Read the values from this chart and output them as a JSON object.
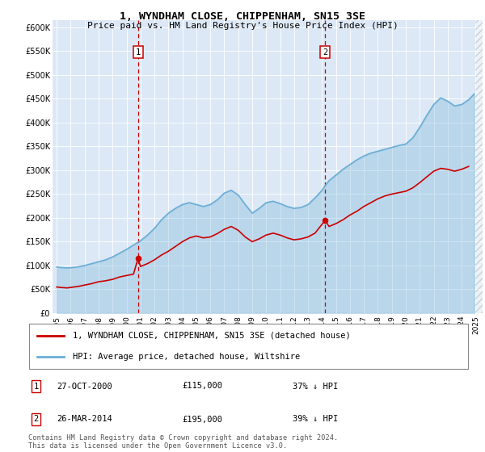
{
  "title": "1, WYNDHAM CLOSE, CHIPPENHAM, SN15 3SE",
  "subtitle": "Price paid vs. HM Land Registry's House Price Index (HPI)",
  "ylim": [
    0,
    620000
  ],
  "xlim_start": 1994.7,
  "xlim_end": 2025.5,
  "plot_bg_color": "#dce8f5",
  "hpi_color": "#6baed6",
  "price_color": "#cc0000",
  "vline_color": "#cc0000",
  "transaction1_x": 2000.82,
  "transaction1_y": 115000,
  "transaction2_x": 2014.23,
  "transaction2_y": 195000,
  "transaction1_date": "27-OCT-2000",
  "transaction1_price": "£115,000",
  "transaction1_hpi": "37% ↓ HPI",
  "transaction2_date": "26-MAR-2014",
  "transaction2_price": "£195,000",
  "transaction2_hpi": "39% ↓ HPI",
  "legend_label_price": "1, WYNDHAM CLOSE, CHIPPENHAM, SN15 3SE (detached house)",
  "legend_label_hpi": "HPI: Average price, detached house, Wiltshire",
  "footnote": "Contains HM Land Registry data © Crown copyright and database right 2024.\nThis data is licensed under the Open Government Licence v3.0.",
  "hpi_data": [
    [
      1995.0,
      97000
    ],
    [
      1995.25,
      96000
    ],
    [
      1995.5,
      95500
    ],
    [
      1995.75,
      95000
    ],
    [
      1996.0,
      95500
    ],
    [
      1996.5,
      97000
    ],
    [
      1997.0,
      100000
    ],
    [
      1997.5,
      104000
    ],
    [
      1998.0,
      108000
    ],
    [
      1998.5,
      112000
    ],
    [
      1999.0,
      118000
    ],
    [
      1999.5,
      126000
    ],
    [
      2000.0,
      134000
    ],
    [
      2000.5,
      143000
    ],
    [
      2001.0,
      152000
    ],
    [
      2001.5,
      164000
    ],
    [
      2002.0,
      178000
    ],
    [
      2002.5,
      196000
    ],
    [
      2003.0,
      210000
    ],
    [
      2003.5,
      220000
    ],
    [
      2004.0,
      228000
    ],
    [
      2004.5,
      232000
    ],
    [
      2005.0,
      228000
    ],
    [
      2005.5,
      224000
    ],
    [
      2006.0,
      228000
    ],
    [
      2006.5,
      238000
    ],
    [
      2007.0,
      252000
    ],
    [
      2007.5,
      258000
    ],
    [
      2008.0,
      248000
    ],
    [
      2008.5,
      228000
    ],
    [
      2009.0,
      210000
    ],
    [
      2009.5,
      220000
    ],
    [
      2010.0,
      232000
    ],
    [
      2010.5,
      235000
    ],
    [
      2011.0,
      230000
    ],
    [
      2011.5,
      224000
    ],
    [
      2012.0,
      220000
    ],
    [
      2012.5,
      222000
    ],
    [
      2013.0,
      228000
    ],
    [
      2013.5,
      242000
    ],
    [
      2014.0,
      258000
    ],
    [
      2014.23,
      268000
    ],
    [
      2014.5,
      278000
    ],
    [
      2015.0,
      290000
    ],
    [
      2015.5,
      302000
    ],
    [
      2016.0,
      312000
    ],
    [
      2016.5,
      322000
    ],
    [
      2017.0,
      330000
    ],
    [
      2017.5,
      336000
    ],
    [
      2018.0,
      340000
    ],
    [
      2018.5,
      344000
    ],
    [
      2019.0,
      348000
    ],
    [
      2019.5,
      352000
    ],
    [
      2020.0,
      355000
    ],
    [
      2020.5,
      368000
    ],
    [
      2021.0,
      390000
    ],
    [
      2021.5,
      415000
    ],
    [
      2022.0,
      438000
    ],
    [
      2022.5,
      452000
    ],
    [
      2023.0,
      445000
    ],
    [
      2023.5,
      435000
    ],
    [
      2024.0,
      438000
    ],
    [
      2024.5,
      448000
    ],
    [
      2024.9,
      460000
    ]
  ],
  "price_data": [
    [
      1995.0,
      55000
    ],
    [
      1995.25,
      54000
    ],
    [
      1995.5,
      53500
    ],
    [
      1995.75,
      53000
    ],
    [
      1996.0,
      54000
    ],
    [
      1996.5,
      56000
    ],
    [
      1997.0,
      59000
    ],
    [
      1997.5,
      62000
    ],
    [
      1998.0,
      66000
    ],
    [
      1998.5,
      68000
    ],
    [
      1999.0,
      71000
    ],
    [
      1999.5,
      76000
    ],
    [
      2000.0,
      79000
    ],
    [
      2000.5,
      82000
    ],
    [
      2000.82,
      115000
    ],
    [
      2001.0,
      98000
    ],
    [
      2001.5,
      104000
    ],
    [
      2002.0,
      112000
    ],
    [
      2002.5,
      122000
    ],
    [
      2003.0,
      130000
    ],
    [
      2003.5,
      140000
    ],
    [
      2004.0,
      150000
    ],
    [
      2004.5,
      158000
    ],
    [
      2005.0,
      162000
    ],
    [
      2005.5,
      158000
    ],
    [
      2006.0,
      160000
    ],
    [
      2006.5,
      167000
    ],
    [
      2007.0,
      176000
    ],
    [
      2007.5,
      182000
    ],
    [
      2008.0,
      174000
    ],
    [
      2008.5,
      160000
    ],
    [
      2009.0,
      150000
    ],
    [
      2009.5,
      156000
    ],
    [
      2010.0,
      164000
    ],
    [
      2010.5,
      168000
    ],
    [
      2011.0,
      164000
    ],
    [
      2011.5,
      158000
    ],
    [
      2012.0,
      154000
    ],
    [
      2012.5,
      156000
    ],
    [
      2013.0,
      160000
    ],
    [
      2013.5,
      168000
    ],
    [
      2014.23,
      195000
    ],
    [
      2014.5,
      182000
    ],
    [
      2015.0,
      188000
    ],
    [
      2015.5,
      196000
    ],
    [
      2016.0,
      206000
    ],
    [
      2016.5,
      214000
    ],
    [
      2017.0,
      224000
    ],
    [
      2017.5,
      232000
    ],
    [
      2018.0,
      240000
    ],
    [
      2018.5,
      246000
    ],
    [
      2019.0,
      250000
    ],
    [
      2019.5,
      253000
    ],
    [
      2020.0,
      256000
    ],
    [
      2020.5,
      263000
    ],
    [
      2021.0,
      274000
    ],
    [
      2021.5,
      286000
    ],
    [
      2022.0,
      298000
    ],
    [
      2022.5,
      304000
    ],
    [
      2023.0,
      302000
    ],
    [
      2023.5,
      298000
    ],
    [
      2024.0,
      302000
    ],
    [
      2024.5,
      308000
    ]
  ]
}
